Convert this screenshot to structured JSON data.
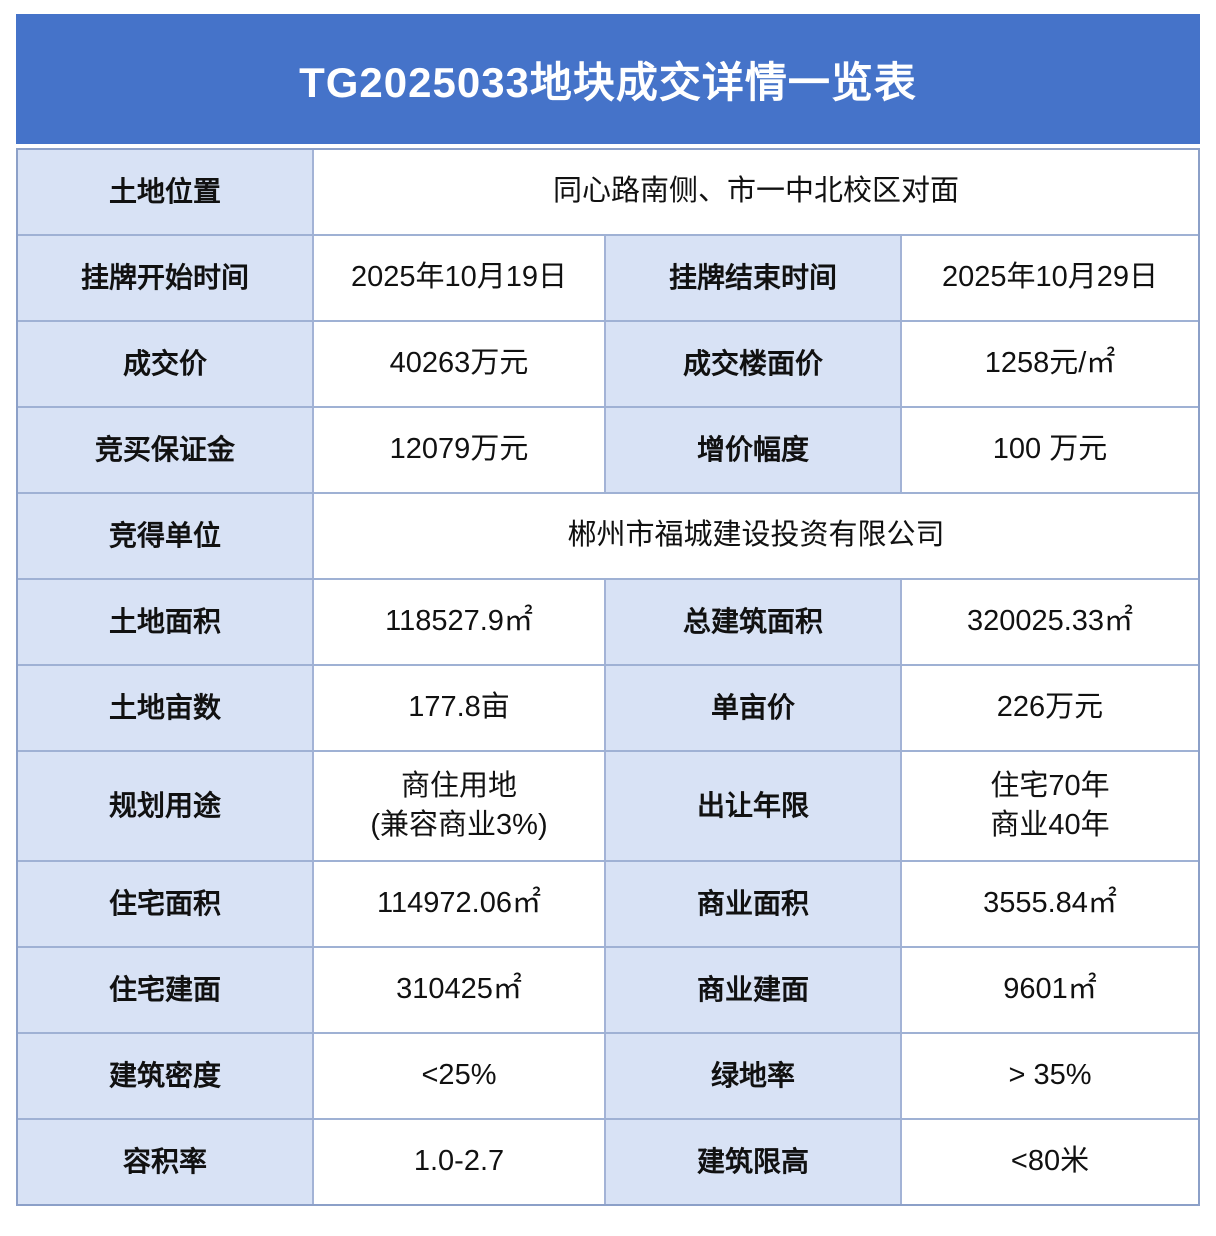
{
  "title": "TG2025033地块成交详情一览表",
  "colors": {
    "header_bg": "#4573C9",
    "header_text": "#FFFFFF",
    "label_cell_bg": "#D8E2F5",
    "value_cell_bg": "#FFFFFF",
    "grid_line": "#9FB1D4",
    "text": "#111111"
  },
  "table": {
    "rows": [
      {
        "kind": "full",
        "label": "土地位置",
        "value": "同心路南侧、市一中北校区对面"
      },
      {
        "kind": "pair",
        "label1": "挂牌开始时间",
        "value1": "2025年10月19日",
        "label2": "挂牌结束时间",
        "value2": "2025年10月29日"
      },
      {
        "kind": "pair",
        "label1": "成交价",
        "value1": "40263万元",
        "label2": "成交楼面价",
        "value2": "1258元/㎡"
      },
      {
        "kind": "pair",
        "label1": "竞买保证金",
        "value1": "12079万元",
        "label2": "增价幅度",
        "value2": "100 万元"
      },
      {
        "kind": "full",
        "label": "竞得单位",
        "value": "郴州市福城建设投资有限公司"
      },
      {
        "kind": "pair",
        "label1": "土地面积",
        "value1": "118527.9㎡",
        "label2": "总建筑面积",
        "value2": "320025.33㎡"
      },
      {
        "kind": "pair",
        "label1": "土地亩数",
        "value1": "177.8亩",
        "label2": "单亩价",
        "value2": "226万元"
      },
      {
        "kind": "pair",
        "label1": "规划用途",
        "value1_lines": [
          "商住用地",
          "(兼容商业3%)"
        ],
        "label2": "出让年限",
        "value2_lines": [
          "住宅70年",
          "商业40年"
        ]
      },
      {
        "kind": "pair",
        "label1": "住宅面积",
        "value1": "114972.06㎡",
        "label2": "商业面积",
        "value2": "3555.84㎡"
      },
      {
        "kind": "pair",
        "label1": "住宅建面",
        "value1": "310425㎡",
        "label2": "商业建面",
        "value2": "9601㎡"
      },
      {
        "kind": "pair",
        "label1": "建筑密度",
        "value1": "<25%",
        "label2": "绿地率",
        "value2": "> 35%"
      },
      {
        "kind": "pair",
        "label1": "容积率",
        "value1": "1.0-2.7",
        "label2": "建筑限高",
        "value2": "<80米"
      }
    ]
  }
}
